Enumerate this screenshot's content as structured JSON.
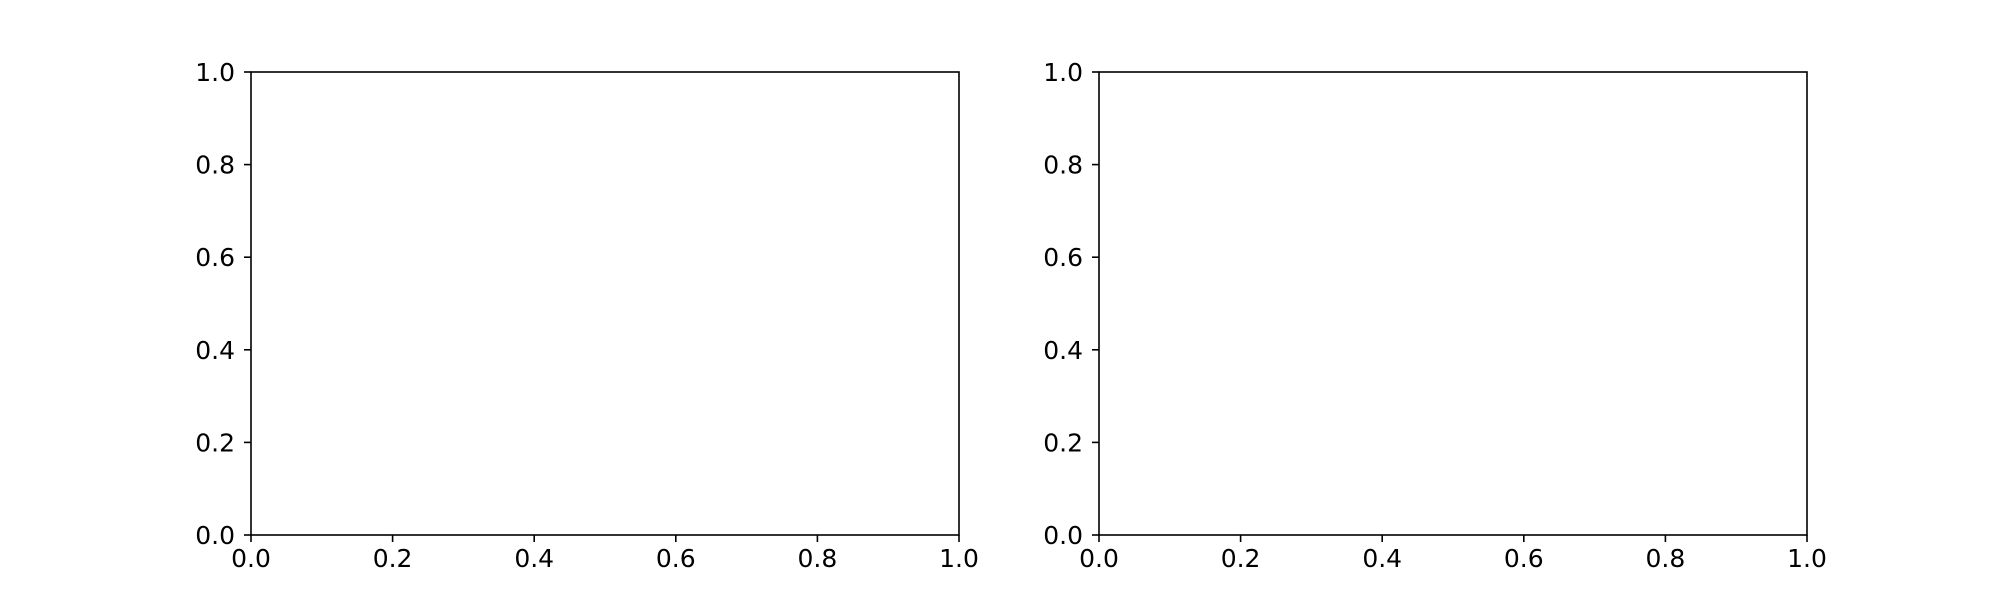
{
  "chart_data": [
    {
      "type": "line",
      "title": "",
      "xlabel": "",
      "ylabel": "",
      "xlim": [
        0.0,
        1.0
      ],
      "ylim": [
        0.0,
        1.0
      ],
      "x_ticks": [
        "0.0",
        "0.2",
        "0.4",
        "0.6",
        "0.8",
        "1.0"
      ],
      "y_ticks": [
        "0.0",
        "0.2",
        "0.4",
        "0.6",
        "0.8",
        "1.0"
      ],
      "series": [],
      "grid": false,
      "legend": "none"
    },
    {
      "type": "line",
      "title": "",
      "xlabel": "",
      "ylabel": "",
      "xlim": [
        0.0,
        1.0
      ],
      "ylim": [
        0.0,
        1.0
      ],
      "x_ticks": [
        "0.0",
        "0.2",
        "0.4",
        "0.6",
        "0.8",
        "1.0"
      ],
      "y_ticks": [
        "0.0",
        "0.2",
        "0.4",
        "0.6",
        "0.8",
        "1.0"
      ],
      "series": [],
      "grid": false,
      "legend": "none"
    }
  ],
  "colors": {
    "axis": "#000000",
    "background": "#ffffff"
  }
}
